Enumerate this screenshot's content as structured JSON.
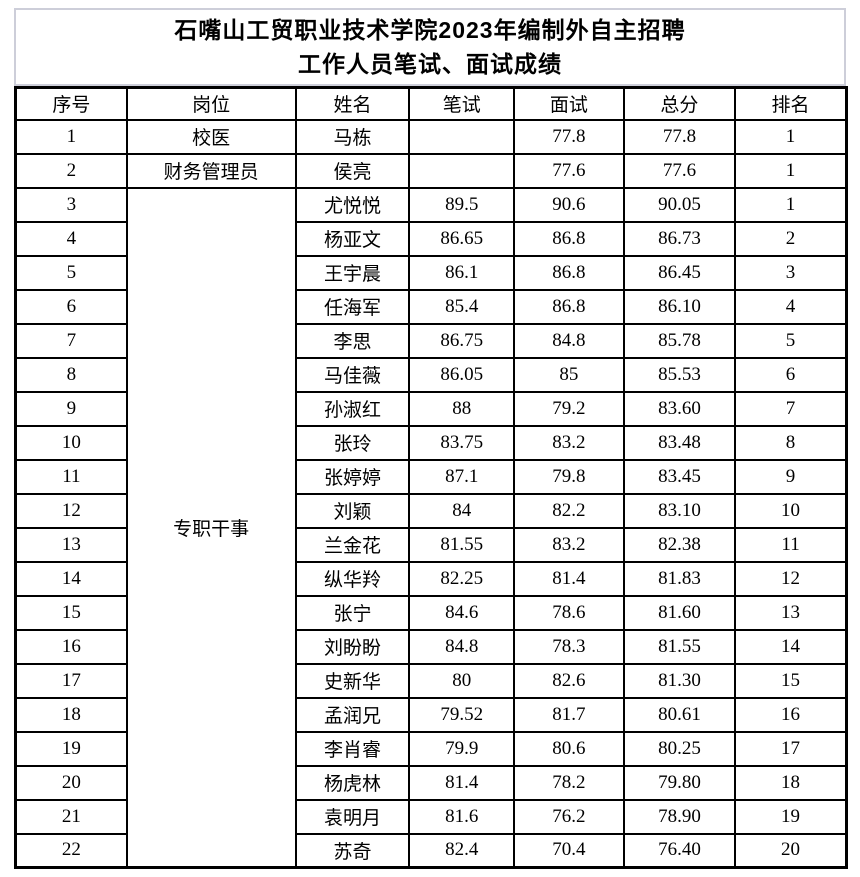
{
  "title": {
    "line1": "石嘴山工贸职业技术学院2023年编制外自主招聘",
    "line2": "工作人员笔试、面试成绩"
  },
  "columns": [
    "序号",
    "岗位",
    "姓名",
    "笔试",
    "面试",
    "总分",
    "排名"
  ],
  "rows": [
    {
      "no": "1",
      "position": "校医",
      "position_rowspan": 1,
      "name": "马栋",
      "written": "",
      "interview": "77.8",
      "total": "77.8",
      "rank": "1"
    },
    {
      "no": "2",
      "position": "财务管理员",
      "position_rowspan": 1,
      "name": "侯亮",
      "written": "",
      "interview": "77.6",
      "total": "77.6",
      "rank": "1"
    },
    {
      "no": "3",
      "position": "专职干事",
      "position_rowspan": 20,
      "name": "尤悦悦",
      "written": "89.5",
      "interview": "90.6",
      "total": "90.05",
      "rank": "1"
    },
    {
      "no": "4",
      "name": "杨亚文",
      "written": "86.65",
      "interview": "86.8",
      "total": "86.73",
      "rank": "2"
    },
    {
      "no": "5",
      "name": "王宇晨",
      "written": "86.1",
      "interview": "86.8",
      "total": "86.45",
      "rank": "3"
    },
    {
      "no": "6",
      "name": "任海军",
      "written": "85.4",
      "interview": "86.8",
      "total": "86.10",
      "rank": "4"
    },
    {
      "no": "7",
      "name": "李思",
      "written": "86.75",
      "interview": "84.8",
      "total": "85.78",
      "rank": "5"
    },
    {
      "no": "8",
      "name": "马佳薇",
      "written": "86.05",
      "interview": "85",
      "total": "85.53",
      "rank": "6"
    },
    {
      "no": "9",
      "name": "孙淑红",
      "written": "88",
      "interview": "79.2",
      "total": "83.60",
      "rank": "7"
    },
    {
      "no": "10",
      "name": "张玲",
      "written": "83.75",
      "interview": "83.2",
      "total": "83.48",
      "rank": "8"
    },
    {
      "no": "11",
      "name": "张婷婷",
      "written": "87.1",
      "interview": "79.8",
      "total": "83.45",
      "rank": "9"
    },
    {
      "no": "12",
      "name": "刘颖",
      "written": "84",
      "interview": "82.2",
      "total": "83.10",
      "rank": "10"
    },
    {
      "no": "13",
      "name": "兰金花",
      "written": "81.55",
      "interview": "83.2",
      "total": "82.38",
      "rank": "11"
    },
    {
      "no": "14",
      "name": "纵华羚",
      "written": "82.25",
      "interview": "81.4",
      "total": "81.83",
      "rank": "12"
    },
    {
      "no": "15",
      "name": "张宁",
      "written": "84.6",
      "interview": "78.6",
      "total": "81.60",
      "rank": "13"
    },
    {
      "no": "16",
      "name": "刘盼盼",
      "written": "84.8",
      "interview": "78.3",
      "total": "81.55",
      "rank": "14"
    },
    {
      "no": "17",
      "name": "史新华",
      "written": "80",
      "interview": "82.6",
      "total": "81.30",
      "rank": "15"
    },
    {
      "no": "18",
      "name": "孟润兄",
      "written": "79.52",
      "interview": "81.7",
      "total": "80.61",
      "rank": "16"
    },
    {
      "no": "19",
      "name": "李肖睿",
      "written": "79.9",
      "interview": "80.6",
      "total": "80.25",
      "rank": "17"
    },
    {
      "no": "20",
      "name": "杨虎林",
      "written": "81.4",
      "interview": "78.2",
      "total": "79.80",
      "rank": "18"
    },
    {
      "no": "21",
      "name": "袁明月",
      "written": "81.6",
      "interview": "76.2",
      "total": "78.90",
      "rank": "19"
    },
    {
      "no": "22",
      "name": "苏奇",
      "written": "82.4",
      "interview": "70.4",
      "total": "76.40",
      "rank": "20"
    }
  ],
  "colors": {
    "table_border": "#000000",
    "title_border": "#cdced9",
    "background": "#ffffff"
  }
}
